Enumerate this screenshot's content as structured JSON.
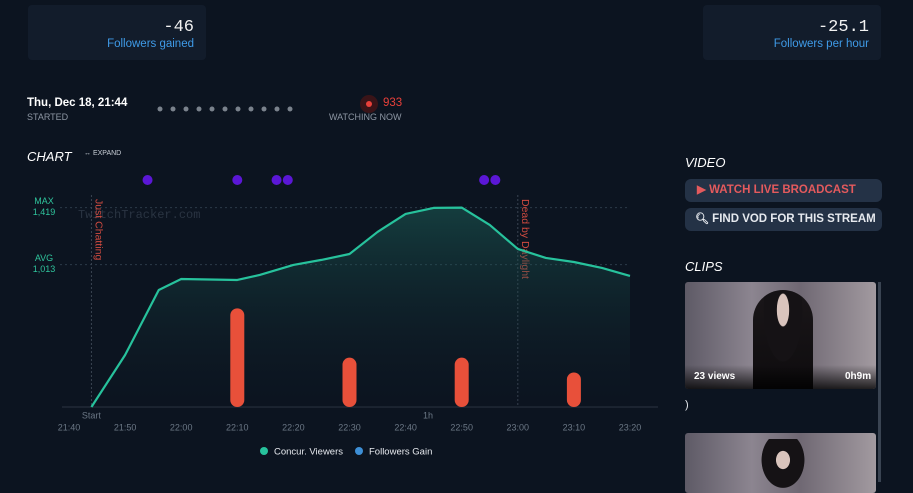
{
  "stats": [
    {
      "value": -46,
      "label": "Followers gained"
    },
    {
      "value": -25.1,
      "label": "Followers per hour"
    }
  ],
  "stream": {
    "started": "Thu, Dec 18, 21:44",
    "started_label": "STARTED",
    "viewers": 933,
    "viewers_label": "WATCHING NOW"
  },
  "chart_heading": {
    "title": "CHART",
    "expand": "EXPAND"
  },
  "chart_data": {
    "type": "line",
    "watermark": "TwitchTracker.com",
    "x": [
      4,
      10,
      16,
      20,
      30,
      34,
      40,
      45,
      50,
      55,
      60,
      65,
      70,
      75,
      80,
      85,
      90,
      95,
      100
    ],
    "series": [
      {
        "name": "Concur. Viewers",
        "color": "#27c29c",
        "values": [
          0,
          370,
          833,
          911,
          904,
          940,
          1011,
          1047,
          1089,
          1246,
          1374,
          1417,
          1419,
          1296,
          1125,
          1061,
          1032,
          990,
          933
        ]
      },
      {
        "name": "Followers Gain",
        "type": "bar",
        "axis": "y2",
        "color": "#e8503a",
        "legend_color": "#3d8fd6",
        "x": [
          30,
          50,
          70,
          90
        ],
        "values": [
          4,
          2,
          2,
          1.4
        ]
      }
    ],
    "xlim": [
      0,
      100
    ],
    "xticks": [
      {
        "value": 0,
        "label": "21:40"
      },
      {
        "value": 10,
        "label": "21:50"
      },
      {
        "value": 20,
        "label": "22:00"
      },
      {
        "value": 30,
        "label": "22:10"
      },
      {
        "value": 40,
        "label": "22:20"
      },
      {
        "value": 50,
        "label": "22:30"
      },
      {
        "value": 60,
        "label": "22:40"
      },
      {
        "value": 70,
        "label": "22:50"
      },
      {
        "value": 80,
        "label": "23:00"
      },
      {
        "value": 90,
        "label": "23:10"
      },
      {
        "value": 100,
        "label": "23:20"
      }
    ],
    "ylim": [
      0,
      1580
    ],
    "y2lim": [
      0,
      9
    ],
    "reference_lines": [
      {
        "label": "MAX",
        "value": 1419,
        "value_label": "1,419"
      },
      {
        "label": "AVG",
        "value": 1013,
        "value_label": "1,013"
      }
    ],
    "events": {
      "color": "#5b17d6",
      "x": [
        14,
        30,
        37,
        39,
        74,
        76
      ]
    },
    "games": [
      {
        "name": "Just Chatting",
        "x": 4
      },
      {
        "name": "Dead by Daylight",
        "x": 80
      }
    ],
    "x_markers": [
      {
        "label": "Start",
        "x": 4
      },
      {
        "label": "1h",
        "x": 64
      }
    ]
  },
  "sidebar": {
    "video_title": "VIDEO",
    "buttons": [
      "WATCH LIVE BROADCAST",
      "FIND VOD FOR THIS STREAM"
    ],
    "clips_title": "CLIPS",
    "clips": [
      {
        "views": "23 views",
        "duration": "0h9m",
        "title": ")"
      }
    ]
  }
}
